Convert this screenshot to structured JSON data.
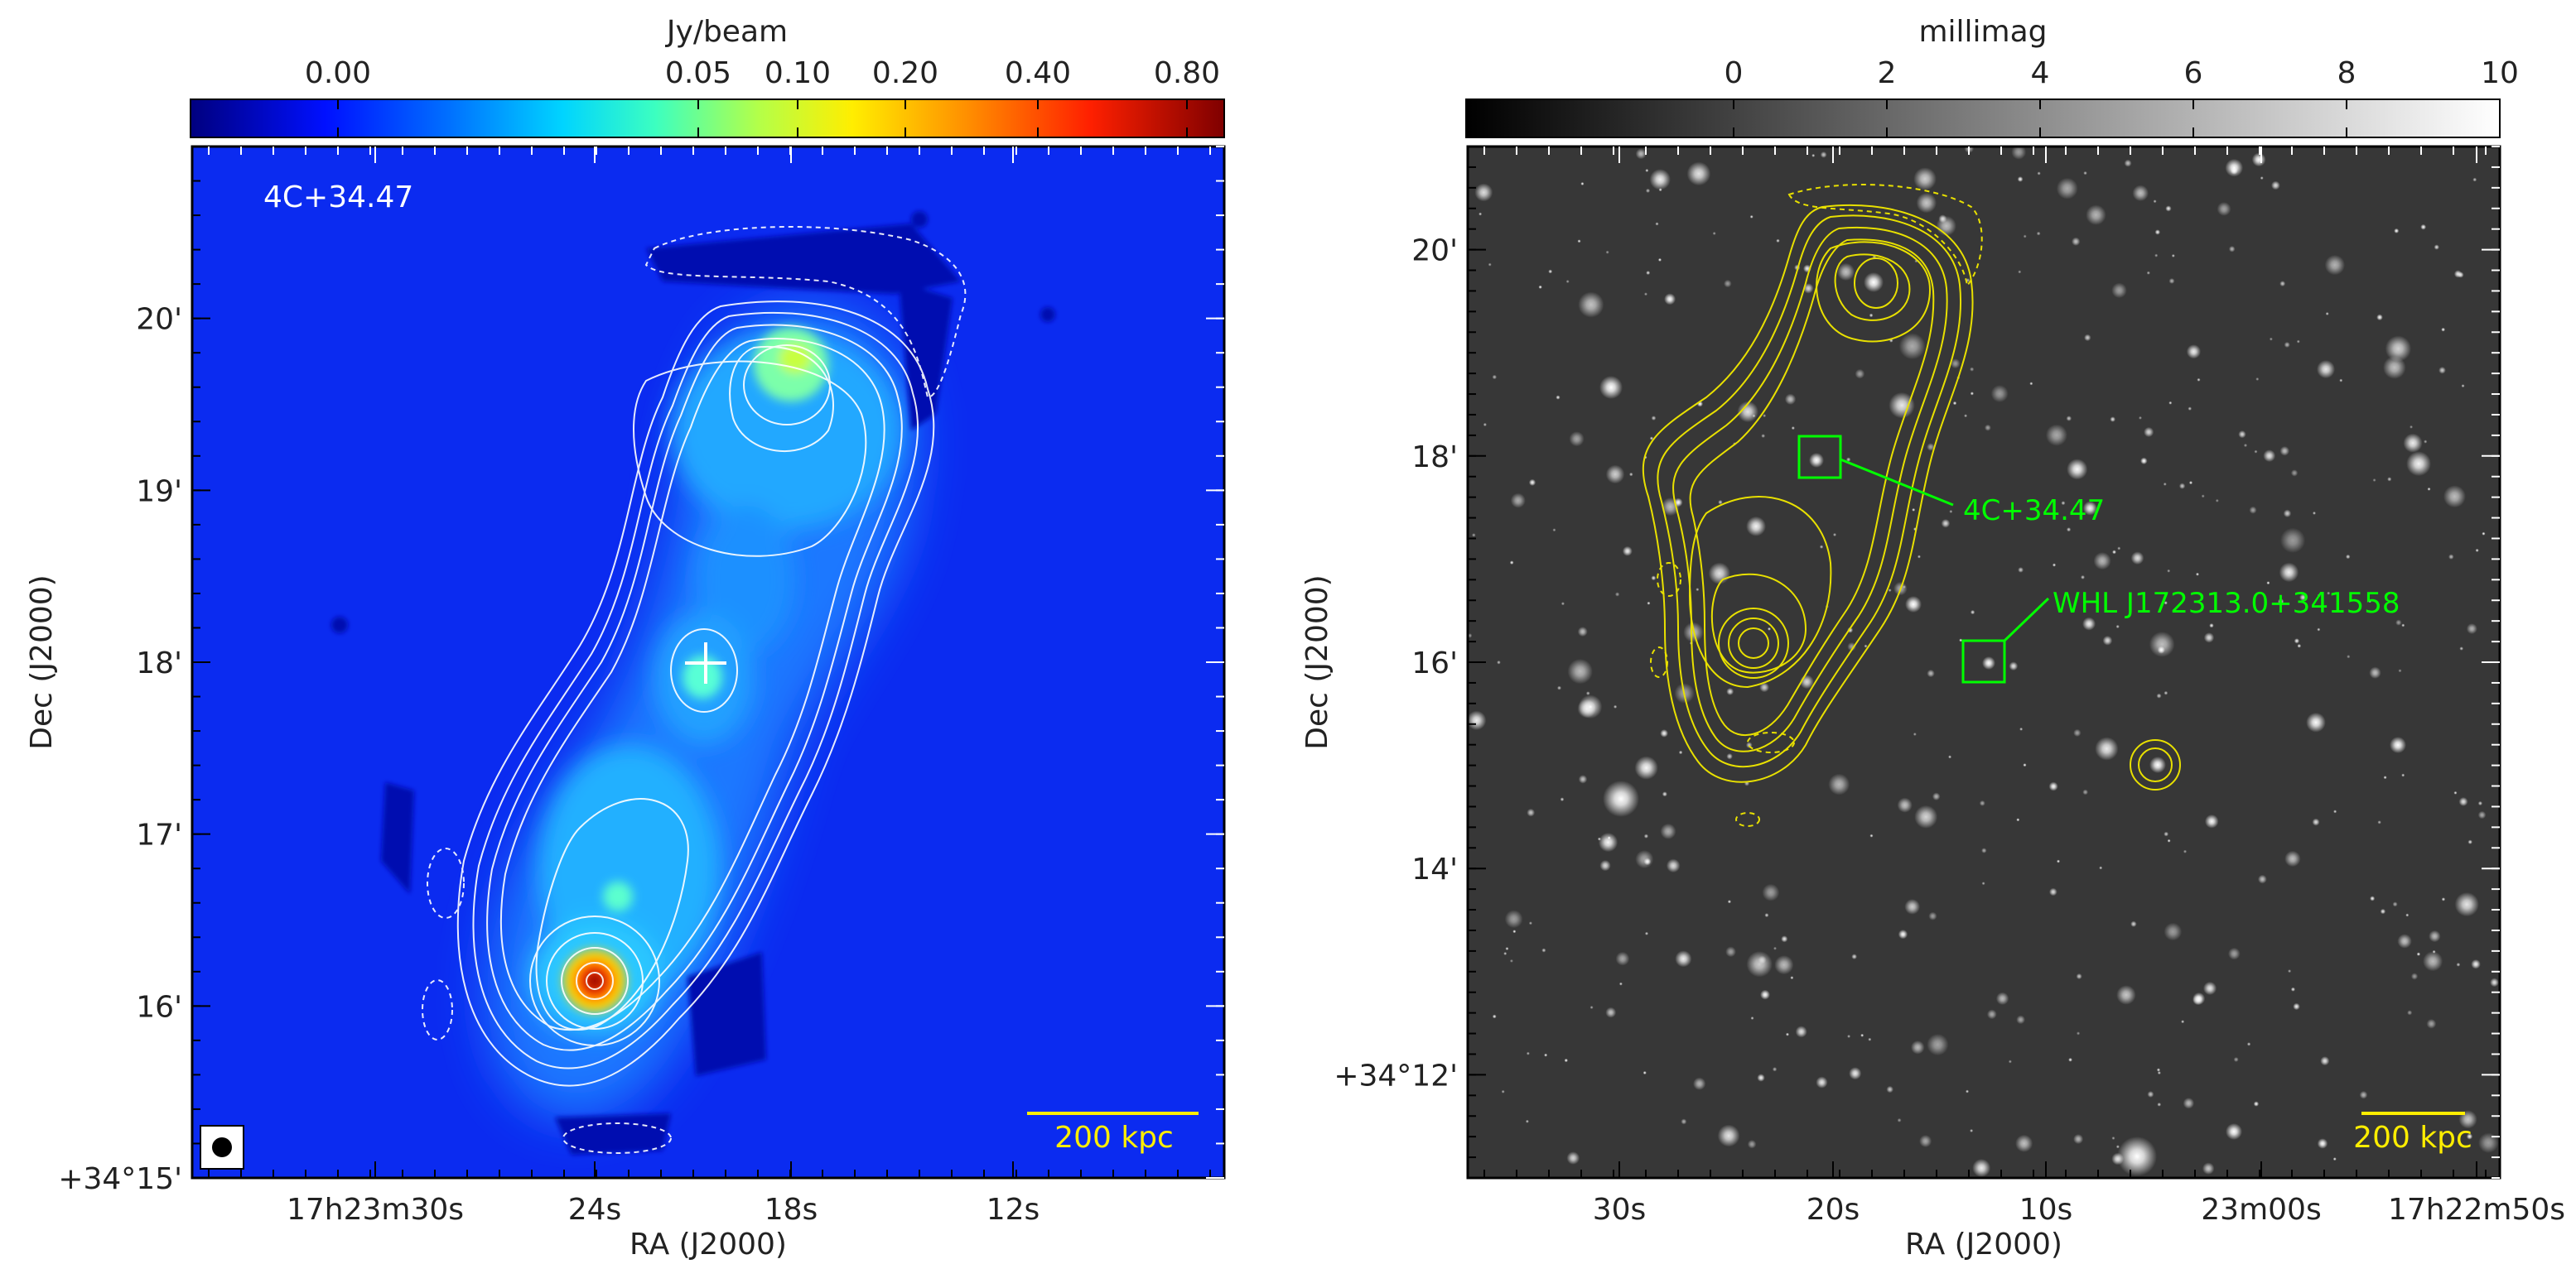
{
  "chart_data": [
    {
      "type": "heatmap",
      "panel": "left",
      "colorbar": {
        "label": "Jy/beam",
        "colormap": "jet",
        "stretch": "nonlinear",
        "ticks": [
          "0.00",
          "0.05",
          "0.10",
          "0.20",
          "0.40",
          "0.80"
        ],
        "tick_values": [
          0.0,
          0.05,
          0.1,
          0.2,
          0.4,
          0.8
        ]
      },
      "title": "4C+34.47",
      "xlabel": "RA (J2000)",
      "ylabel": "Dec (J2000)",
      "xticks": [
        "17h23m30s",
        "24s",
        "18s",
        "12s"
      ],
      "yticks": [
        "+34°15'",
        "16'",
        "17'",
        "18'",
        "19'",
        "20'"
      ],
      "dec_range_arcmin": [
        15.0,
        21.0
      ],
      "contours": "white",
      "scalebar": "200 kpc",
      "beam": "circle"
    },
    {
      "type": "heatmap",
      "panel": "right",
      "colorbar": {
        "label": "millimag",
        "colormap": "gray",
        "ticks": [
          "0",
          "2",
          "4",
          "6",
          "8",
          "10"
        ],
        "tick_values": [
          0,
          2,
          4,
          6,
          8,
          10
        ]
      },
      "xlabel": "RA (J2000)",
      "ylabel": "Dec (J2000)",
      "xticks": [
        "30s",
        "20s",
        "10s",
        "23m00s",
        "17h22m50s"
      ],
      "yticks": [
        "+34°12'",
        "14'",
        "16'",
        "18'",
        "20'"
      ],
      "dec_range_arcmin": [
        11.0,
        21.0
      ],
      "contours": "yellow",
      "annotations": [
        "4C+34.47",
        "WHL J172313.0+341558"
      ],
      "scalebar": "200 kpc"
    }
  ]
}
